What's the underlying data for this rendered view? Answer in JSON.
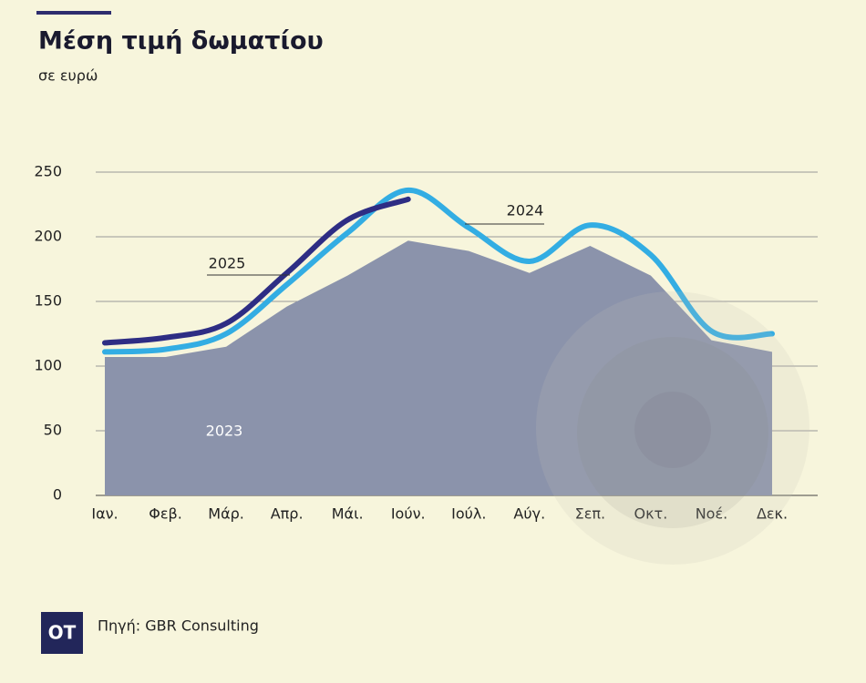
{
  "chart_data": {
    "type": "line",
    "title": "Μέση τιμή δωματίου",
    "subtitle": "σε ευρώ",
    "categories": [
      "Ιαν.",
      "Φεβ.",
      "Μάρ.",
      "Απρ.",
      "Μάι.",
      "Ιούν.",
      "Ιούλ.",
      "Αύγ.",
      "Σεπ.",
      "Οκτ.",
      "Νοέ.",
      "Δεκ."
    ],
    "series": [
      {
        "name": "2023",
        "type": "area",
        "color": "#8b93ab",
        "values": [
          107,
          107,
          115,
          146,
          170,
          197,
          189,
          172,
          193,
          170,
          120,
          111
        ]
      },
      {
        "name": "2024",
        "type": "line",
        "color": "#33ade3",
        "values": [
          111,
          113,
          125,
          163,
          203,
          236,
          207,
          181,
          209,
          186,
          127,
          125
        ]
      },
      {
        "name": "2025",
        "type": "line",
        "color": "#2e2d84",
        "values": [
          118,
          122,
          133,
          172,
          213,
          229,
          null,
          null,
          null,
          null,
          null,
          null
        ]
      }
    ],
    "ylim": [
      0,
      250
    ],
    "yticks": [
      0,
      50,
      100,
      150,
      200,
      250
    ],
    "grid": true,
    "source": "Πηγή: GBR Consulting",
    "logo": "OT"
  }
}
